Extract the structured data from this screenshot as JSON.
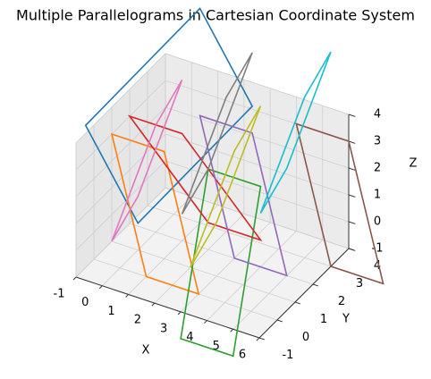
{
  "chart_data": {
    "type": "parallelogram3d",
    "title": "Multiple Parallelograms in Cartesian Coordinate System",
    "xlabel": "X",
    "ylabel": "Y",
    "zlabel": "Z",
    "xlim": [
      -1,
      6
    ],
    "ylim": [
      -1,
      4
    ],
    "zlim": [
      -1,
      4
    ],
    "xticks": [
      -1,
      0,
      1,
      2,
      3,
      4,
      5,
      6
    ],
    "yticks": [
      -1,
      0,
      1,
      2,
      3,
      4
    ],
    "zticks": [
      -1,
      0,
      1,
      2,
      3,
      4
    ],
    "grid": true,
    "series": [
      {
        "color": "#1f77b4",
        "vertices": [
          [
            -2,
            1,
            3
          ],
          [
            0,
            1,
            0
          ],
          [
            3,
            3,
            4
          ],
          [
            1,
            3,
            7
          ]
        ]
      },
      {
        "color": "#ff7f0e",
        "vertices": [
          [
            -1,
            1,
            3
          ],
          [
            1,
            1,
            3
          ],
          [
            3,
            0,
            -1
          ],
          [
            1,
            0,
            -1
          ]
        ]
      },
      {
        "color": "#2ca02c",
        "vertices": [
          [
            2,
            2,
            2
          ],
          [
            4,
            2,
            2
          ],
          [
            5,
            -1,
            -2
          ],
          [
            3,
            -1,
            -2
          ]
        ]
      },
      {
        "color": "#d62728",
        "vertices": [
          [
            -1,
            2,
            3
          ],
          [
            1,
            2,
            3
          ],
          [
            4,
            2,
            0
          ],
          [
            2,
            2,
            0
          ]
        ]
      },
      {
        "color": "#9467bd",
        "vertices": [
          [
            1,
            3,
            3
          ],
          [
            3,
            3,
            3
          ],
          [
            5,
            2,
            -1
          ],
          [
            3,
            2,
            -1
          ]
        ]
      },
      {
        "color": "#8c564b",
        "vertices": [
          [
            4,
            4,
            3
          ],
          [
            6,
            4,
            3
          ],
          [
            8,
            3,
            -1
          ],
          [
            6,
            3,
            -1
          ]
        ]
      },
      {
        "color": "#e377c2",
        "vertices": [
          [
            -1,
            1,
            -1
          ],
          [
            0,
            1,
            1
          ],
          [
            1,
            2,
            5
          ],
          [
            0,
            2,
            3
          ]
        ]
      },
      {
        "color": "#7f7f7f",
        "vertices": [
          [
            1,
            2,
            0
          ],
          [
            2,
            2,
            2
          ],
          [
            3,
            3,
            6
          ],
          [
            2,
            3,
            4
          ]
        ]
      },
      {
        "color": "#bcbd22",
        "vertices": [
          [
            2,
            1,
            -1
          ],
          [
            3,
            1,
            1
          ],
          [
            4,
            2,
            5
          ],
          [
            3,
            2,
            3
          ]
        ]
      },
      {
        "color": "#17becf",
        "vertices": [
          [
            4,
            2,
            1
          ],
          [
            5,
            2,
            3
          ],
          [
            6,
            3,
            7
          ],
          [
            5,
            3,
            5
          ]
        ]
      }
    ]
  }
}
